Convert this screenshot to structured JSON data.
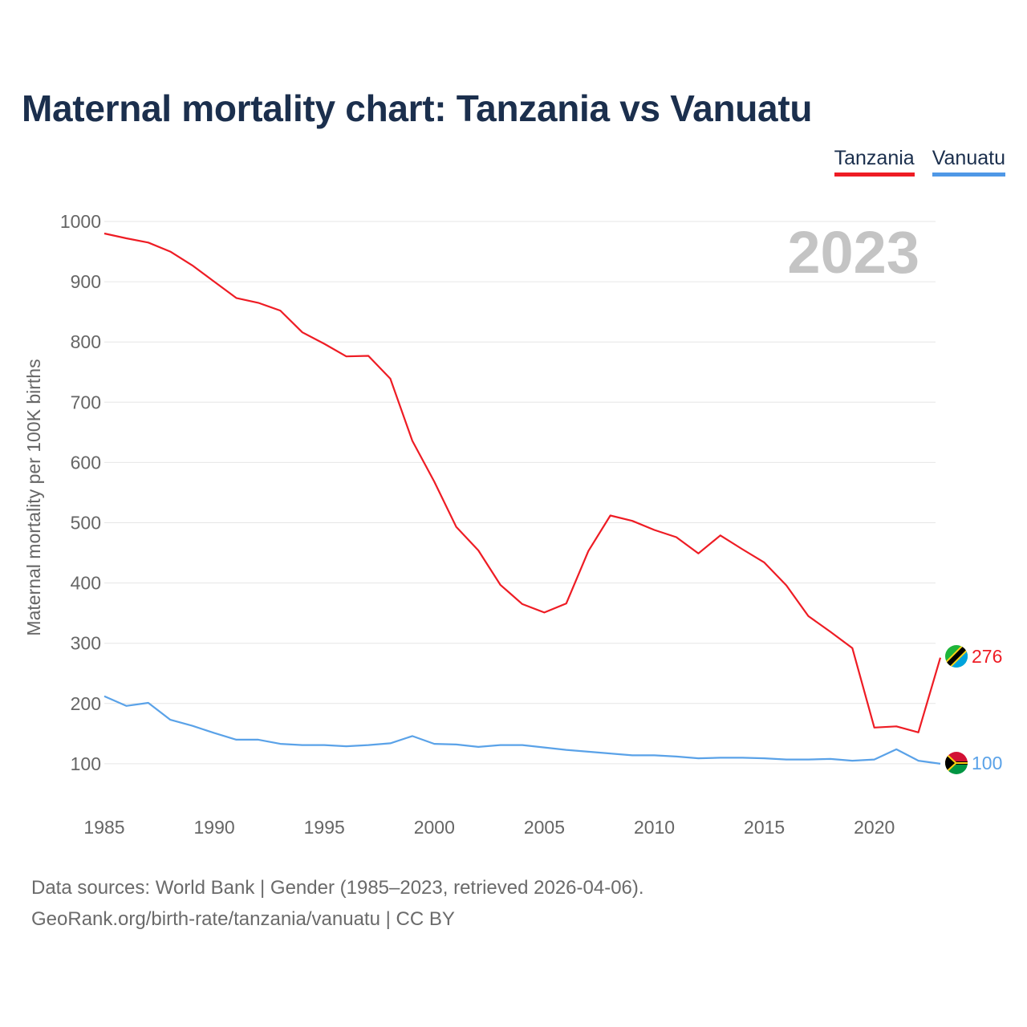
{
  "title": "Maternal mortality chart: Tanzania vs Vanuatu",
  "legend": {
    "tanzania": "Tanzania",
    "vanuatu": "Vanuatu"
  },
  "footer": {
    "line1": "Data sources: World Bank | Gender (1985–2023, retrieved 2026-04-06).",
    "line2": "GeoRank.org/birth-rate/tanzania/vanuatu | CC BY"
  },
  "colors": {
    "tanzania": "#ee1c24",
    "vanuatu": "#5aa2e8",
    "grid": "#e6e6e6",
    "axis_text": "#666666",
    "year_watermark": "#c4c4c4"
  },
  "chart_data": {
    "type": "line",
    "title": "Maternal mortality chart: Tanzania vs Vanuatu",
    "ylabel": "Maternal mortality per 100K births",
    "xlabel": "",
    "year_label": "2023",
    "xlim": [
      1985,
      2023
    ],
    "ylim": [
      0,
      1000
    ],
    "yticks": [
      100,
      200,
      300,
      400,
      500,
      600,
      700,
      800,
      900,
      1000
    ],
    "xticks": [
      1985,
      1990,
      1995,
      2000,
      2005,
      2010,
      2015,
      2020
    ],
    "x": [
      1985,
      1986,
      1987,
      1988,
      1989,
      1990,
      1991,
      1992,
      1993,
      1994,
      1995,
      1996,
      1997,
      1998,
      1999,
      2000,
      2001,
      2002,
      2003,
      2004,
      2005,
      2006,
      2007,
      2008,
      2009,
      2010,
      2011,
      2012,
      2013,
      2014,
      2015,
      2016,
      2017,
      2018,
      2019,
      2020,
      2021,
      2022,
      2023
    ],
    "series": [
      {
        "name": "Tanzania",
        "end_label": "276",
        "values": [
          980,
          972,
          965,
          950,
          927,
          900,
          873,
          865,
          852,
          816,
          797,
          776,
          777,
          739,
          636,
          568,
          493,
          454,
          397,
          365,
          351,
          366,
          453,
          512,
          503,
          488,
          476,
          449,
          479,
          456,
          434,
          396,
          345,
          319,
          292,
          160,
          162,
          152,
          276
        ]
      },
      {
        "name": "Vanuatu",
        "end_label": "100",
        "values": [
          212,
          196,
          201,
          173,
          163,
          151,
          140,
          140,
          133,
          131,
          131,
          129,
          131,
          134,
          146,
          133,
          132,
          128,
          131,
          131,
          127,
          123,
          120,
          117,
          114,
          114,
          112,
          109,
          110,
          110,
          109,
          107,
          107,
          108,
          105,
          107,
          124,
          105,
          100
        ]
      }
    ]
  }
}
